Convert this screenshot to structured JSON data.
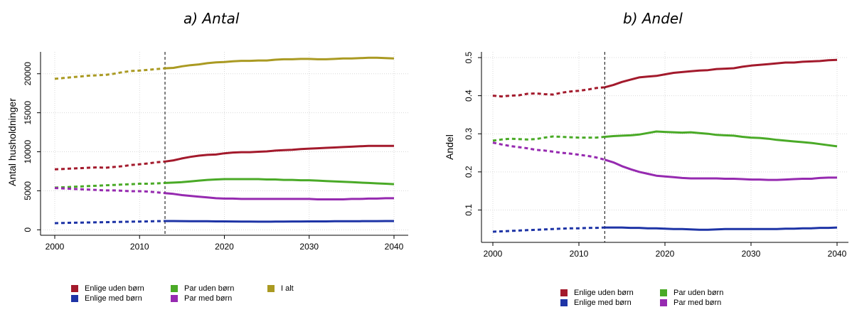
{
  "chart_data": [
    {
      "type": "line",
      "title": "a) Antal",
      "xlabel": "",
      "ylabel": "Antal husholdninger",
      "xlim": [
        2000,
        2040
      ],
      "ylim": [
        -700,
        22800
      ],
      "xticks": [
        "2000",
        "2010",
        "2020",
        "2030",
        "2040"
      ],
      "yticks": [
        "0",
        "5000",
        "10000",
        "15000",
        "20000"
      ],
      "vline_x": 2013,
      "grid": true,
      "legend_position": "bottom-left",
      "legend": [
        {
          "label": "Enlige uden børn",
          "color": "#a31a2c"
        },
        {
          "label": "Par uden børn",
          "color": "#4aaa27"
        },
        {
          "label": "I alt",
          "color": "#aa9a22"
        },
        {
          "label": "Enlige med børn",
          "color": "#1e34a6"
        },
        {
          "label": "Par med børn",
          "color": "#962ab0"
        }
      ],
      "x": [
        2000,
        2001,
        2002,
        2003,
        2004,
        2005,
        2006,
        2007,
        2008,
        2009,
        2010,
        2011,
        2012,
        2013,
        2014,
        2015,
        2016,
        2017,
        2018,
        2019,
        2020,
        2021,
        2022,
        2023,
        2024,
        2025,
        2026,
        2027,
        2028,
        2029,
        2030,
        2031,
        2032,
        2033,
        2034,
        2035,
        2036,
        2037,
        2038,
        2039,
        2040
      ],
      "series": [
        {
          "color": "#aa9a22",
          "values": [
            19350,
            19450,
            19550,
            19650,
            19750,
            19800,
            19850,
            20000,
            20200,
            20350,
            20400,
            20500,
            20600,
            20700,
            20750,
            20950,
            21100,
            21200,
            21350,
            21450,
            21500,
            21600,
            21650,
            21650,
            21700,
            21700,
            21800,
            21850,
            21850,
            21900,
            21900,
            21850,
            21850,
            21900,
            21950,
            21950,
            22000,
            22050,
            22050,
            22000,
            21950
          ]
        },
        {
          "color": "#a31a2c",
          "values": [
            7750,
            7800,
            7850,
            7900,
            7950,
            8000,
            7950,
            8050,
            8150,
            8300,
            8400,
            8500,
            8650,
            8750,
            8900,
            9150,
            9350,
            9500,
            9600,
            9650,
            9800,
            9900,
            9950,
            9950,
            10000,
            10050,
            10150,
            10200,
            10250,
            10350,
            10400,
            10450,
            10500,
            10550,
            10600,
            10650,
            10700,
            10750,
            10750,
            10750,
            10750
          ]
        },
        {
          "color": "#4aaa27",
          "values": [
            5400,
            5450,
            5500,
            5550,
            5600,
            5650,
            5700,
            5750,
            5800,
            5850,
            5900,
            5900,
            5950,
            6000,
            6050,
            6100,
            6200,
            6300,
            6400,
            6450,
            6500,
            6500,
            6500,
            6500,
            6500,
            6450,
            6450,
            6400,
            6400,
            6350,
            6350,
            6300,
            6250,
            6200,
            6150,
            6100,
            6050,
            6000,
            5950,
            5900,
            5850
          ]
        },
        {
          "color": "#962ab0",
          "values": [
            5350,
            5300,
            5250,
            5200,
            5150,
            5100,
            5050,
            5050,
            5000,
            4950,
            4950,
            4900,
            4800,
            4700,
            4600,
            4450,
            4350,
            4250,
            4150,
            4050,
            4000,
            4000,
            3950,
            3950,
            3950,
            3950,
            3950,
            3950,
            3950,
            3950,
            3950,
            3900,
            3900,
            3900,
            3900,
            3950,
            3950,
            4000,
            4000,
            4050,
            4050
          ]
        },
        {
          "color": "#1e34a6",
          "values": [
            850,
            880,
            900,
            920,
            940,
            960,
            980,
            1000,
            1020,
            1040,
            1060,
            1080,
            1100,
            1120,
            1120,
            1110,
            1100,
            1100,
            1090,
            1080,
            1080,
            1070,
            1060,
            1050,
            1040,
            1040,
            1050,
            1060,
            1070,
            1070,
            1080,
            1080,
            1080,
            1090,
            1090,
            1100,
            1100,
            1110,
            1110,
            1120,
            1120
          ]
        }
      ]
    },
    {
      "type": "line",
      "title": "b) Andel",
      "xlabel": "",
      "ylabel": "Andel",
      "xlim": [
        2000,
        2040
      ],
      "ylim": [
        0.015,
        0.515
      ],
      "xticks": [
        "2000",
        "2010",
        "2020",
        "2030",
        "2040"
      ],
      "yticks": [
        "0.1",
        "0.2",
        "0.3",
        "0.4",
        "0.5"
      ],
      "vline_x": 2013,
      "grid": true,
      "legend_position": "bottom-center",
      "legend": [
        {
          "label": "Enlige uden børn",
          "color": "#a31a2c"
        },
        {
          "label": "Par uden børn",
          "color": "#4aaa27"
        },
        {
          "label": "Enlige med børn",
          "color": "#1e34a6"
        },
        {
          "label": "Par med børn",
          "color": "#962ab0"
        }
      ],
      "x": [
        2000,
        2001,
        2002,
        2003,
        2004,
        2005,
        2006,
        2007,
        2008,
        2009,
        2010,
        2011,
        2012,
        2013,
        2014,
        2015,
        2016,
        2017,
        2018,
        2019,
        2020,
        2021,
        2022,
        2023,
        2024,
        2025,
        2026,
        2027,
        2028,
        2029,
        2030,
        2031,
        2032,
        2033,
        2034,
        2035,
        2036,
        2037,
        2038,
        2039,
        2040
      ],
      "series": [
        {
          "color": "#a31a2c",
          "values": [
            0.4,
            0.398,
            0.4,
            0.401,
            0.405,
            0.406,
            0.404,
            0.403,
            0.408,
            0.411,
            0.413,
            0.416,
            0.42,
            0.422,
            0.428,
            0.436,
            0.442,
            0.448,
            0.45,
            0.452,
            0.456,
            0.46,
            0.462,
            0.464,
            0.466,
            0.467,
            0.47,
            0.471,
            0.472,
            0.476,
            0.479,
            0.481,
            0.483,
            0.485,
            0.487,
            0.487,
            0.489,
            0.49,
            0.491,
            0.493,
            0.494
          ]
        },
        {
          "color": "#4aaa27",
          "values": [
            0.282,
            0.285,
            0.287,
            0.286,
            0.285,
            0.286,
            0.29,
            0.293,
            0.292,
            0.291,
            0.29,
            0.29,
            0.29,
            0.292,
            0.294,
            0.295,
            0.296,
            0.298,
            0.302,
            0.306,
            0.305,
            0.304,
            0.303,
            0.304,
            0.302,
            0.3,
            0.297,
            0.296,
            0.295,
            0.292,
            0.29,
            0.289,
            0.287,
            0.284,
            0.282,
            0.28,
            0.278,
            0.276,
            0.273,
            0.27,
            0.267
          ]
        },
        {
          "color": "#962ab0",
          "values": [
            0.277,
            0.272,
            0.268,
            0.265,
            0.262,
            0.258,
            0.256,
            0.253,
            0.25,
            0.248,
            0.245,
            0.242,
            0.238,
            0.232,
            0.225,
            0.215,
            0.207,
            0.2,
            0.195,
            0.19,
            0.188,
            0.186,
            0.184,
            0.183,
            0.183,
            0.183,
            0.183,
            0.182,
            0.182,
            0.181,
            0.18,
            0.18,
            0.179,
            0.179,
            0.18,
            0.181,
            0.182,
            0.182,
            0.184,
            0.185,
            0.185
          ]
        },
        {
          "color": "#1e34a6",
          "values": [
            0.043,
            0.044,
            0.045,
            0.046,
            0.047,
            0.048,
            0.049,
            0.05,
            0.051,
            0.052,
            0.052,
            0.053,
            0.053,
            0.054,
            0.054,
            0.054,
            0.053,
            0.053,
            0.052,
            0.052,
            0.051,
            0.05,
            0.05,
            0.049,
            0.048,
            0.048,
            0.049,
            0.05,
            0.05,
            0.05,
            0.05,
            0.05,
            0.05,
            0.05,
            0.051,
            0.051,
            0.052,
            0.052,
            0.053,
            0.053,
            0.054
          ]
        }
      ]
    }
  ]
}
